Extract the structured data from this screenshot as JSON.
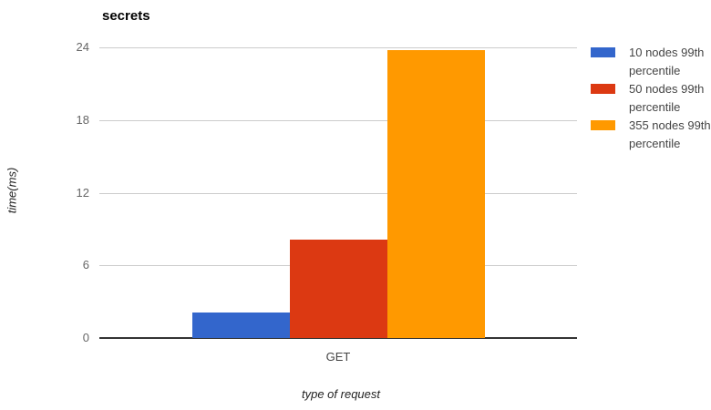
{
  "chart_data": {
    "type": "bar",
    "title": "secrets",
    "xlabel": "type of request",
    "ylabel": "time(ms)",
    "categories": [
      "GET"
    ],
    "series": [
      {
        "name": "10 nodes 99th percentile",
        "color": "#3366CC",
        "values": [
          2.1
        ]
      },
      {
        "name": "50 nodes 99th percentile",
        "color": "#DC3912",
        "values": [
          8.1
        ]
      },
      {
        "name": "355 nodes 99th percentile",
        "color": "#FF9900",
        "values": [
          23.8
        ]
      }
    ],
    "ylim": [
      0,
      24
    ],
    "yticks": [
      0,
      6,
      12,
      18,
      24
    ],
    "grid": true,
    "legend_position": "right",
    "grid_color": "#cccccc",
    "axis_color": "#333333",
    "background_color": "#ffffff"
  }
}
